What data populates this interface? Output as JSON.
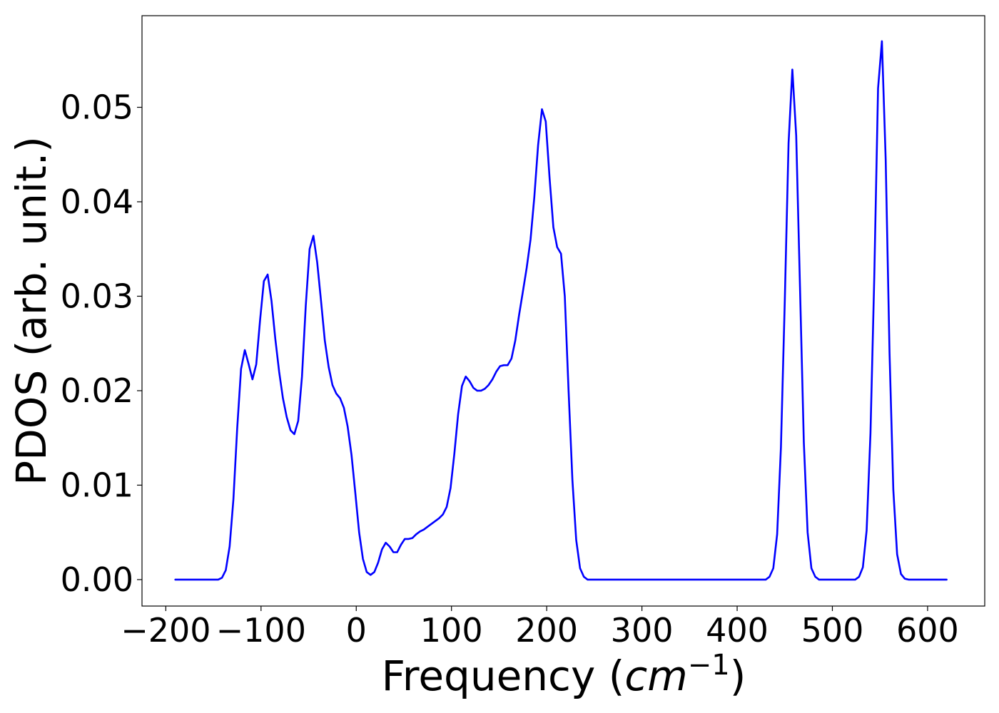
{
  "chart_data": {
    "type": "line",
    "xlabel": "Frequency",
    "xlabel_unit_open": "(",
    "xlabel_unit_base": "cm",
    "xlabel_unit_sup": "−1",
    "xlabel_unit_close": ")",
    "ylabel": "PDOS (arb. unit.)",
    "xlim": [
      -225,
      660
    ],
    "ylim": [
      -0.0028,
      0.0597
    ],
    "grid": false,
    "xticks": [
      -200,
      -100,
      0,
      100,
      200,
      300,
      400,
      500,
      600
    ],
    "xtick_labels": [
      "−200",
      "−100",
      "0",
      "100",
      "200",
      "300",
      "400",
      "500",
      "600"
    ],
    "yticks": [
      0.0,
      0.01,
      0.02,
      0.03,
      0.04,
      0.05
    ],
    "ytick_labels": [
      "0.00",
      "0.01",
      "0.02",
      "0.03",
      "0.04",
      "0.05"
    ],
    "line_color": "#0000ff",
    "series": [
      {
        "x": [
          -190,
          -145,
          -141,
          -137,
          -133,
          -129,
          -125,
          -121,
          -117,
          -113,
          -109,
          -105,
          -101,
          -97,
          -93,
          -89,
          -85,
          -81,
          -77,
          -73,
          -69,
          -65,
          -61,
          -57,
          -53,
          -49,
          -45,
          -41,
          -37,
          -33,
          -29,
          -25,
          -21,
          -17,
          -13,
          -9,
          -5,
          -1,
          3,
          7,
          11,
          15,
          19,
          23,
          27,
          31,
          35,
          39,
          43,
          47,
          51,
          55,
          59,
          63,
          67,
          71,
          75,
          79,
          83,
          87,
          91,
          95,
          99,
          103,
          107,
          111,
          115,
          119,
          123,
          127,
          131,
          135,
          139,
          143,
          147,
          151,
          155,
          159,
          163,
          167,
          171,
          175,
          179,
          183,
          187,
          191,
          195,
          199,
          203,
          207,
          211,
          215,
          219,
          223,
          227,
          231,
          235,
          239,
          243,
          247,
          251,
          430,
          434,
          438,
          442,
          446,
          450,
          454,
          458,
          462,
          466,
          470,
          474,
          478,
          482,
          486,
          490,
          520,
          524,
          528,
          532,
          536,
          540,
          544,
          548,
          552,
          556,
          560,
          564,
          568,
          572,
          576,
          580,
          620
        ],
        "values": [
          0.0,
          0.0,
          0.0002,
          0.001,
          0.0035,
          0.0085,
          0.016,
          0.0223,
          0.0243,
          0.0228,
          0.0212,
          0.0228,
          0.0275,
          0.0316,
          0.0323,
          0.0295,
          0.0255,
          0.022,
          0.0192,
          0.0172,
          0.0158,
          0.0154,
          0.0168,
          0.0215,
          0.029,
          0.035,
          0.0364,
          0.0336,
          0.0295,
          0.0253,
          0.0225,
          0.0206,
          0.0197,
          0.0192,
          0.0182,
          0.0162,
          0.0132,
          0.0092,
          0.005,
          0.0022,
          0.0008,
          0.0005,
          0.0008,
          0.0018,
          0.0032,
          0.0039,
          0.0035,
          0.0029,
          0.0029,
          0.0037,
          0.0043,
          0.0043,
          0.0044,
          0.0048,
          0.0051,
          0.0053,
          0.0056,
          0.0059,
          0.0062,
          0.0065,
          0.0069,
          0.0077,
          0.0097,
          0.0133,
          0.0175,
          0.0205,
          0.0215,
          0.021,
          0.0203,
          0.02,
          0.02,
          0.0202,
          0.0206,
          0.0212,
          0.022,
          0.0226,
          0.0227,
          0.0227,
          0.0234,
          0.0253,
          0.028,
          0.0305,
          0.033,
          0.036,
          0.0405,
          0.046,
          0.0498,
          0.0485,
          0.0425,
          0.0373,
          0.0352,
          0.0345,
          0.03,
          0.02,
          0.0105,
          0.0042,
          0.0012,
          0.0003,
          0.0,
          0.0,
          0.0,
          0.0,
          0.0003,
          0.0012,
          0.0048,
          0.014,
          0.0295,
          0.0462,
          0.054,
          0.047,
          0.031,
          0.0145,
          0.005,
          0.0012,
          0.0003,
          0.0,
          0.0,
          0.0,
          0.0,
          0.0003,
          0.0013,
          0.0052,
          0.0155,
          0.032,
          0.052,
          0.057,
          0.0445,
          0.024,
          0.0095,
          0.0027,
          0.0006,
          0.0001,
          0.0,
          0.0
        ]
      }
    ]
  }
}
